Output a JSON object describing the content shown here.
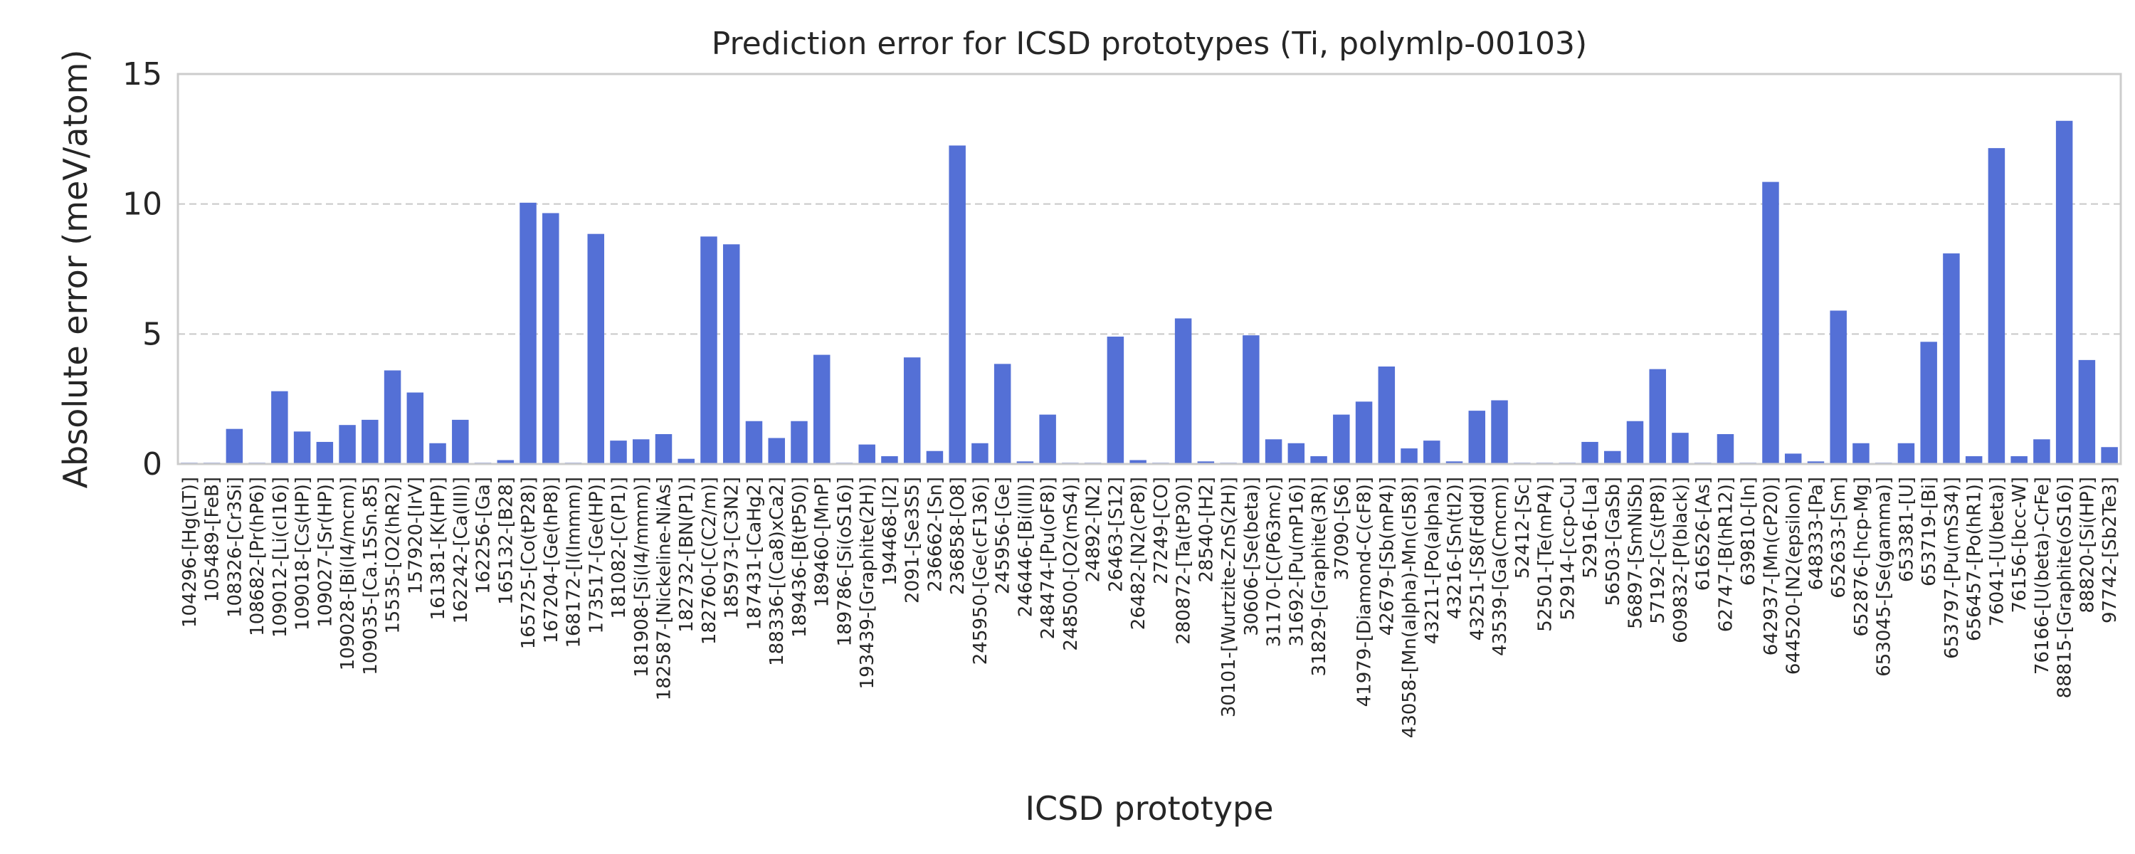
{
  "chart_data": {
    "type": "bar",
    "title": "Prediction error for ICSD prototypes (Ti, polymlp-00103)",
    "xlabel": "ICSD prototype",
    "ylabel": "Absolute error (meV/atom)",
    "ylim": [
      0,
      15
    ],
    "yticks": [
      0,
      5,
      10,
      15
    ],
    "grid": true,
    "color": "#5470d6",
    "categories": [
      "104296-[Hg(LT)]",
      "105489-[FeB]",
      "108326-[Cr3Si]",
      "108682-[Pr(hP6)]",
      "109012-[Li(cI16)]",
      "109018-[Cs(HP)]",
      "109027-[Sr(HP)]",
      "109028-[Bi(I4/mcm)]",
      "109035-[Ca.15Sn.85]",
      "15535-[O2(hR2)]",
      "157920-[IrV]",
      "161381-[K(HP)]",
      "162242-[Ca(III)]",
      "162256-[Ga]",
      "165132-[B28]",
      "165725-[Co(tP28)]",
      "167204-[Ge(hP8)]",
      "168172-[I(Immm)]",
      "173517-[Ge(HP)]",
      "181082-[C(P1)]",
      "181908-[Si(I4/mmm)]",
      "182587-[Nickeline-NiAs]",
      "182732-[BN(P1)]",
      "182760-[C(C2/m)]",
      "185973-[C3N2]",
      "187431-[CaHg2]",
      "188336-[(Ca8)xCa2]",
      "189436-[B(tP50)]",
      "189460-[MnP]",
      "189786-[Si(oS16)]",
      "193439-[Graphite(2H)]",
      "194468-[I2]",
      "2091-[Se3S5]",
      "236662-[Sn]",
      "236858-[O8]",
      "245950-[Ge(cF136)]",
      "245956-[Ge]",
      "246446-[Bi(III)]",
      "248474-[Pu(oF8)]",
      "248500-[O2(mS4)]",
      "24892-[N2]",
      "26463-[S12]",
      "26482-[N2(cP8)]",
      "27249-[CO]",
      "280872-[Ta(tP30)]",
      "28540-[H2]",
      "30101-[Wurtzite-ZnS(2H)]",
      "30606-[Se(beta)]",
      "31170-[C(P63mc)]",
      "31692-[Pu(mP16)]",
      "31829-[Graphite(3R)]",
      "37090-[S6]",
      "41979-[Diamond-C(cF8)]",
      "42679-[Sb(mP4)]",
      "43058-[Mn(alpha)-Mn(cI58)]",
      "43211-[Po(alpha)]",
      "43216-[Sn(tI2)]",
      "43251-[S8(Fddd)]",
      "43539-[Ga(Cmcm)]",
      "52412-[Sc]",
      "52501-[Te(mP4)]",
      "52914-[ccp-Cu]",
      "52916-[La]",
      "56503-[GaSb]",
      "56897-[SmNiSb]",
      "57192-[Cs(tP8)]",
      "609832-[P(black)]",
      "616526-[As]",
      "62747-[B(hR12)]",
      "639810-[In]",
      "642937-[Mn(cP20)]",
      "644520-[N2(epsilon)]",
      "648333-[Pa]",
      "652633-[Sm]",
      "652876-[hcp-Mg]",
      "653045-[Se(gamma)]",
      "653381-[U]",
      "653719-[Bi]",
      "653797-[Pu(mS34)]",
      "656457-[Po(hR1)]",
      "76041-[U(beta)]",
      "76156-[bcc-W]",
      "76166-[U(beta)-CrFe]",
      "88815-[Graphite(oS16)]",
      "88820-[Si(HP)]",
      "97742-[Sb2Te3]"
    ],
    "values": [
      0.05,
      0.05,
      1.35,
      0.05,
      2.8,
      1.25,
      0.85,
      1.5,
      1.7,
      3.6,
      2.75,
      0.8,
      1.7,
      0.05,
      0.15,
      10.05,
      9.65,
      0.05,
      8.85,
      0.9,
      0.95,
      1.15,
      0.2,
      8.75,
      8.45,
      1.65,
      1.0,
      1.65,
      4.2,
      0.05,
      0.75,
      0.3,
      4.1,
      0.5,
      12.25,
      0.8,
      3.85,
      0.1,
      1.9,
      0.05,
      0.05,
      4.9,
      0.15,
      0.05,
      5.6,
      0.1,
      0.05,
      4.95,
      0.95,
      0.8,
      0.3,
      1.9,
      2.4,
      3.75,
      0.6,
      0.9,
      0.1,
      2.05,
      2.45,
      0.05,
      0.05,
      0.05,
      0.85,
      0.5,
      1.65,
      3.65,
      1.2,
      0.05,
      1.15,
      0.05,
      10.85,
      0.4,
      0.1,
      5.9,
      0.8,
      0.05,
      0.8,
      4.7,
      8.1,
      0.3,
      12.15,
      0.3,
      0.95,
      13.2,
      4.0,
      0.65
    ]
  }
}
